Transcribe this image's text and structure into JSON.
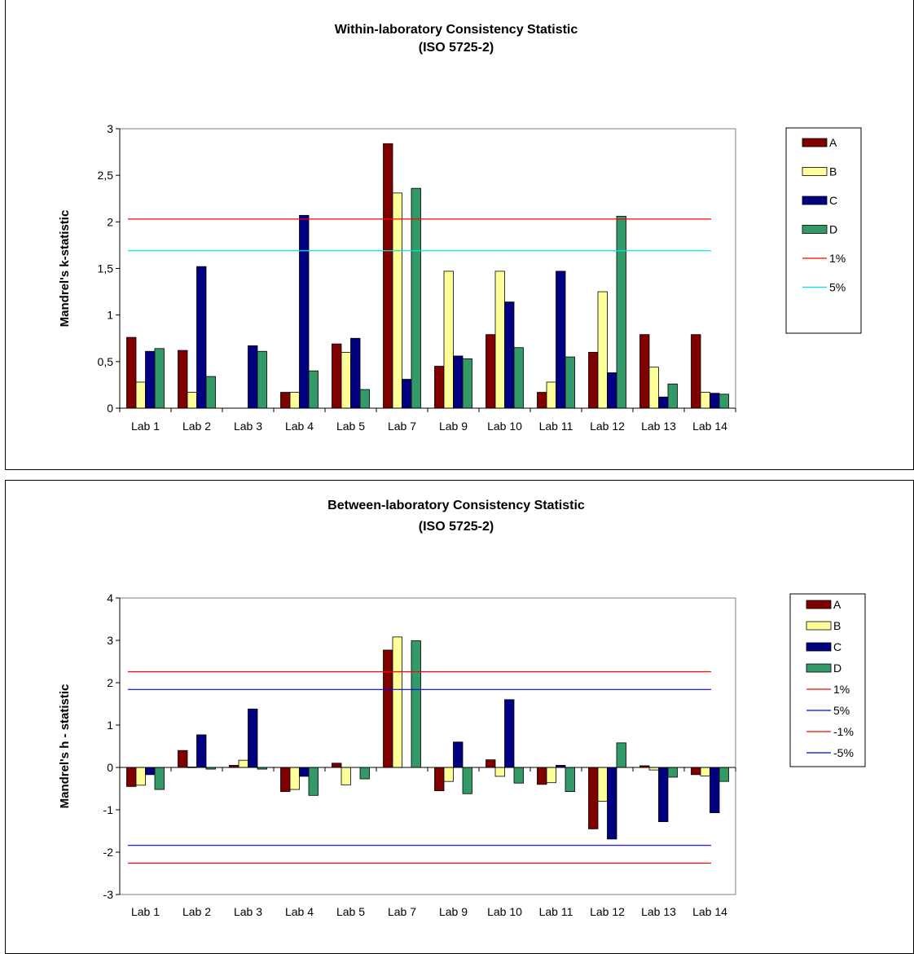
{
  "charts": [
    {
      "title": "Within-laboratory Consistency Statistic",
      "subtitle": "(ISO 5725-2)",
      "ylabel": "Mandrel's k-statistic",
      "ytick_labels": [
        "0",
        "0,5",
        "1",
        "1,5",
        "2",
        "2,5",
        "3"
      ]
    },
    {
      "title": "Between-laboratory Consistency Statistic",
      "subtitle": "(ISO 5725-2)",
      "ylabel": "Mandrel's h - statistic",
      "ytick_labels": [
        "-3",
        "-2",
        "-1",
        "0",
        "1",
        "2",
        "3",
        "4"
      ]
    }
  ],
  "chart_data": [
    {
      "type": "bar",
      "title": "Within-laboratory Consistency Statistic (ISO 5725-2)",
      "ylabel": "Mandrel's k-statistic",
      "ylim": [
        0,
        3
      ],
      "yticks": [
        0,
        0.5,
        1,
        1.5,
        2,
        2.5,
        3
      ],
      "grid": false,
      "legend_position": "right",
      "categories": [
        "Lab 1",
        "Lab 2",
        "Lab 3",
        "Lab 4",
        "Lab 5",
        "Lab 7",
        "Lab 9",
        "Lab 10",
        "Lab 11",
        "Lab 12",
        "Lab 13",
        "Lab 14"
      ],
      "series": [
        {
          "name": "A",
          "color": "#800000",
          "values": [
            0.76,
            0.62,
            0,
            0.17,
            0.69,
            2.84,
            0.45,
            0.79,
            0.17,
            0.6,
            0.79,
            0.79
          ]
        },
        {
          "name": "B",
          "color": "#ffff99",
          "values": [
            0.28,
            0.17,
            0,
            0.17,
            0.6,
            2.31,
            1.47,
            1.47,
            0.28,
            1.25,
            0.44,
            0.17
          ]
        },
        {
          "name": "C",
          "color": "#000080",
          "values": [
            0.61,
            1.52,
            0.67,
            2.07,
            0.75,
            0.31,
            0.56,
            1.14,
            1.47,
            0.38,
            0.12,
            0.16
          ]
        },
        {
          "name": "D",
          "color": "#339966",
          "values": [
            0.64,
            0.34,
            0.61,
            0.4,
            0.2,
            2.36,
            0.53,
            0.65,
            0.55,
            2.06,
            0.26,
            0.15
          ]
        }
      ],
      "reference_lines": [
        {
          "name": "1%",
          "color": "#ff0000",
          "value": 2.03
        },
        {
          "name": "5%",
          "color": "#00e5e5",
          "value": 1.69
        }
      ]
    },
    {
      "type": "bar",
      "title": "Between-laboratory Consistency Statistic (ISO 5725-2)",
      "ylabel": "Mandrel's h - statistic",
      "ylim": [
        -3,
        4
      ],
      "yticks": [
        -3,
        -2,
        -1,
        0,
        1,
        2,
        3,
        4
      ],
      "grid": false,
      "legend_position": "right",
      "categories": [
        "Lab 1",
        "Lab 2",
        "Lab 3",
        "Lab 4",
        "Lab 5",
        "Lab 7",
        "Lab 9",
        "Lab 10",
        "Lab 11",
        "Lab 12",
        "Lab 13",
        "Lab 14"
      ],
      "series": [
        {
          "name": "A",
          "color": "#800000",
          "values": [
            -0.45,
            0.4,
            0.05,
            -0.57,
            0.1,
            2.77,
            -0.55,
            0.18,
            -0.4,
            -1.45,
            0.04,
            -0.17
          ]
        },
        {
          "name": "B",
          "color": "#ffff99",
          "values": [
            -0.42,
            0.01,
            0.17,
            -0.52,
            -0.41,
            3.08,
            -0.33,
            -0.21,
            -0.36,
            -0.8,
            -0.06,
            -0.2
          ]
        },
        {
          "name": "C",
          "color": "#000080",
          "values": [
            -0.17,
            0.77,
            1.38,
            -0.21,
            0,
            0,
            0.6,
            1.6,
            0.05,
            -1.69,
            -1.28,
            -1.07
          ]
        },
        {
          "name": "D",
          "color": "#339966",
          "values": [
            -0.52,
            -0.04,
            -0.04,
            -0.66,
            -0.27,
            2.99,
            -0.62,
            -0.37,
            -0.57,
            0.58,
            -0.23,
            -0.33
          ]
        }
      ],
      "reference_lines": [
        {
          "name": "1%",
          "color": "#ff0000",
          "value": 2.26
        },
        {
          "name": "5%",
          "color": "#0000ff",
          "value": 1.84
        },
        {
          "name": "-1%",
          "color": "#ff0000",
          "value": -2.26
        },
        {
          "name": "-5%",
          "color": "#0000ff",
          "value": -1.84
        }
      ]
    }
  ]
}
